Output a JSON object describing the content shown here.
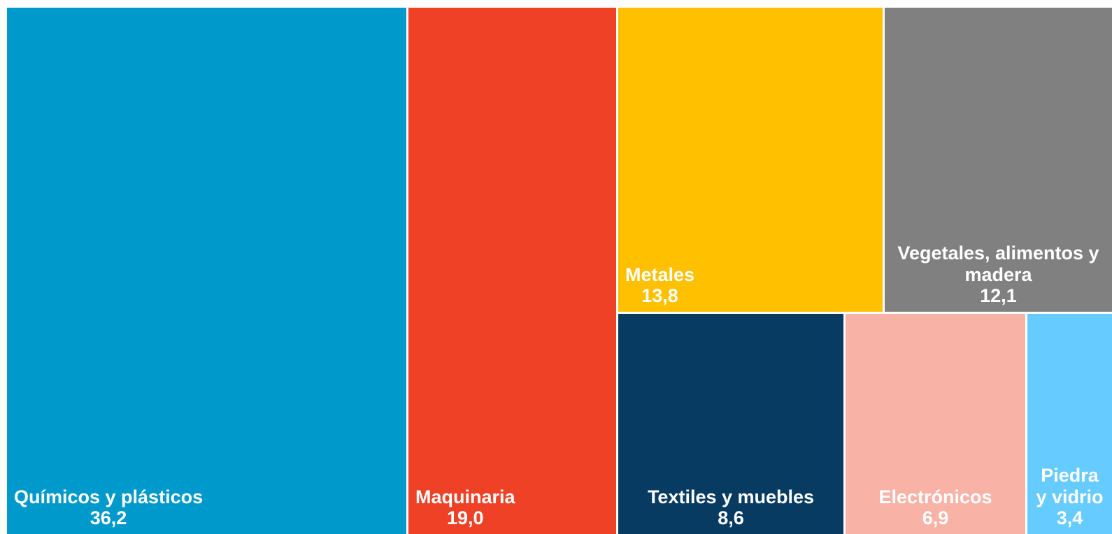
{
  "chart_data": {
    "type": "treemap",
    "title": "",
    "items": [
      {
        "name": "Químicos y plásticos",
        "value": 36.2,
        "value_label": "36,2",
        "color": "#0099CC"
      },
      {
        "name": "Maquinaria",
        "value": 19.0,
        "value_label": "19,0",
        "color": "#EF4125"
      },
      {
        "name": "Metales",
        "value": 13.8,
        "value_label": "13,8",
        "color": "#FFC000"
      },
      {
        "name": "Vegetales, alimentos y madera",
        "name_lines": [
          "Vegetales, alimentos y",
          "madera"
        ],
        "value": 12.1,
        "value_label": "12,1",
        "color": "#808080"
      },
      {
        "name": "Textiles y muebles",
        "value": 8.6,
        "value_label": "8,6",
        "color": "#073B61"
      },
      {
        "name": "Electrónicos",
        "value": 6.9,
        "value_label": "6,9",
        "color": "#F8B2A6"
      },
      {
        "name": "Piedra y vidrio",
        "name_lines": [
          "Piedra",
          "y vidrio"
        ],
        "value": 3.4,
        "value_label": "3,4",
        "color": "#66CCFF"
      }
    ]
  }
}
